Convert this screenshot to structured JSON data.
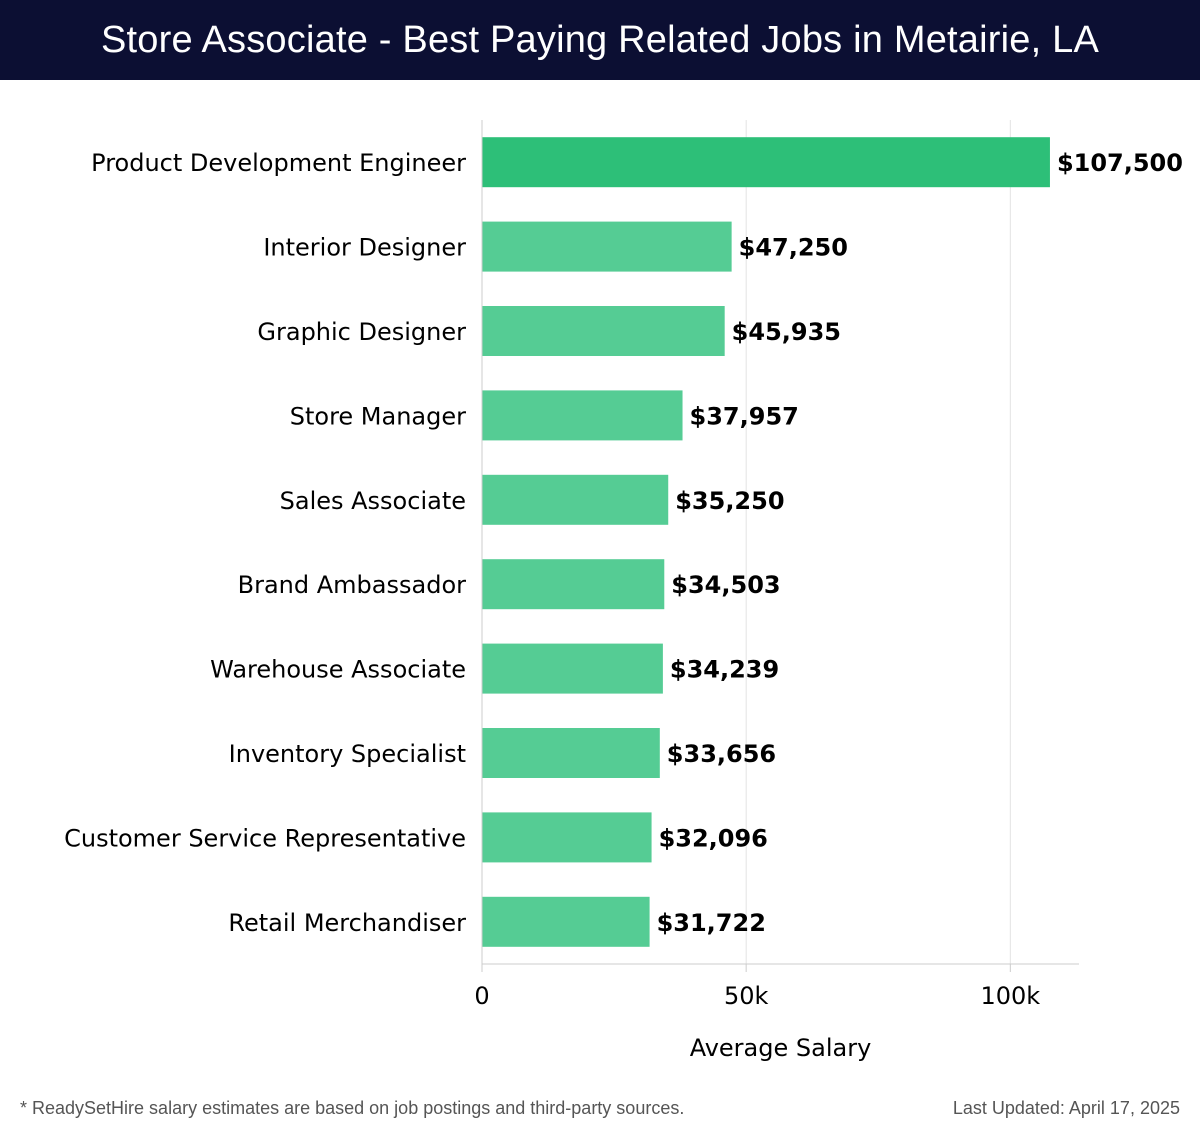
{
  "title": "Store Associate - Best Paying Related Jobs in Metairie, LA",
  "chart_data": {
    "type": "bar",
    "orientation": "horizontal",
    "title": "Store Associate - Best Paying Related Jobs in Metairie, LA",
    "xlabel": "Average Salary",
    "ylabel": "",
    "xlim": [
      0,
      113000
    ],
    "xticks": [
      0,
      50000,
      100000
    ],
    "xtick_labels": [
      "0",
      "50k",
      "100k"
    ],
    "grid": "vertical",
    "categories": [
      "Product Development Engineer",
      "Interior Designer",
      "Graphic Designer",
      "Store Manager",
      "Sales Associate",
      "Brand Ambassador",
      "Warehouse Associate",
      "Inventory Specialist",
      "Customer Service Representative",
      "Retail Merchandiser"
    ],
    "values": [
      107500,
      47250,
      45935,
      37957,
      35250,
      34503,
      34239,
      33656,
      32096,
      31722
    ],
    "value_labels": [
      "$107,500",
      "$47,250",
      "$45,935",
      "$37,957",
      "$35,250",
      "$34,503",
      "$34,239",
      "$33,656",
      "$32,096",
      "$31,722"
    ],
    "colors": {
      "highlight": "#2dbf78",
      "bar": "#55cc94",
      "grid": "#e3e3e3",
      "axis": "#cccccc",
      "text": "#000000"
    }
  },
  "footer": {
    "note": "* ReadySetHire salary estimates are based on job postings and third-party sources.",
    "updated": "Last Updated: April 17, 2025"
  }
}
